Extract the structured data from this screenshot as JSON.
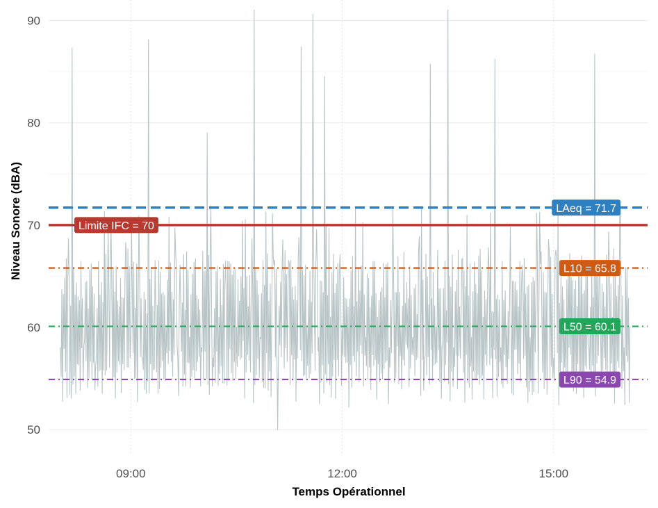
{
  "chart_data": {
    "type": "line",
    "xlabel": "Temps Opérationnel",
    "ylabel": "Niveau Sonore (dBA)",
    "x_unit": "hours",
    "xlim": [
      "07:50",
      "16:20"
    ],
    "ylim": [
      47.5,
      92
    ],
    "x_ticks": [
      {
        "x": "09:00",
        "label": "09:00"
      },
      {
        "x": "12:00",
        "label": "12:00"
      },
      {
        "x": "15:00",
        "label": "15:00"
      }
    ],
    "y_ticks": [
      50,
      60,
      70,
      80,
      90
    ],
    "grid": true,
    "series": [
      {
        "style": "thin line",
        "color": "#b8c4c6",
        "x": [
          "08:00",
          "08:10",
          "08:15",
          "08:20",
          "08:30",
          "08:40",
          "08:50",
          "09:00",
          "09:10",
          "09:15",
          "09:20",
          "09:30",
          "09:40",
          "09:50",
          "10:00",
          "10:05",
          "10:10",
          "10:15",
          "10:20",
          "10:30",
          "10:40",
          "10:45",
          "10:50",
          "11:00",
          "11:05",
          "11:10",
          "11:20",
          "11:25",
          "11:30",
          "11:35",
          "11:40",
          "11:45",
          "11:50",
          "12:00",
          "12:10",
          "12:20",
          "12:30",
          "12:40",
          "12:50",
          "13:00",
          "13:10",
          "13:15",
          "13:20",
          "13:25",
          "13:30",
          "13:35",
          "13:40",
          "13:50",
          "14:00",
          "14:10",
          "14:15",
          "14:20",
          "14:30",
          "14:40",
          "14:50",
          "15:00",
          "15:10",
          "15:20",
          "15:30",
          "15:35",
          "15:40",
          "15:50",
          "16:00",
          "16:05"
        ],
        "values": [
          58,
          87.3,
          63,
          58,
          56,
          61,
          62,
          59,
          57,
          88.1,
          56,
          60,
          57,
          59,
          58,
          79,
          57,
          61,
          64,
          60,
          62,
          91,
          59,
          61,
          50,
          62,
          64,
          87.4,
          60,
          90.6,
          59,
          84.5,
          61,
          60,
          62,
          59,
          61,
          58,
          60,
          59,
          57,
          85.7,
          60,
          58,
          91,
          58,
          62,
          59,
          61,
          86.2,
          58,
          60,
          62,
          59,
          61,
          57,
          60,
          62,
          58,
          86.7,
          59,
          61,
          58,
          60
        ]
      }
    ],
    "reference_lines": [
      {
        "label": "LAeq = 71.7",
        "value": 71.7,
        "color": "#2f80c0",
        "style": "dashed"
      },
      {
        "label": "Limite IFC = 70",
        "value": 70,
        "color": "#b53a30",
        "style": "solid"
      },
      {
        "label": "L10 = 65.8",
        "value": 65.8,
        "color": "#cf5a13",
        "style": "dotdash"
      },
      {
        "label": "L50 = 60.1",
        "value": 60.1,
        "color": "#23a55a",
        "style": "dotdash"
      },
      {
        "label": "L90 = 54.9",
        "value": 54.9,
        "color": "#8a47ad",
        "style": "dotdash"
      }
    ]
  }
}
